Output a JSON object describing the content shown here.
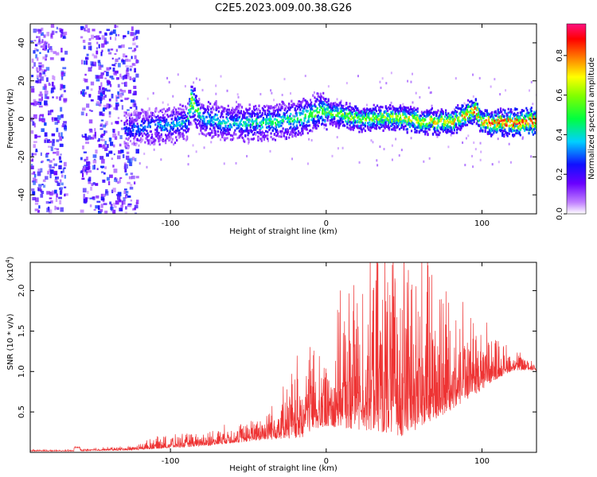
{
  "title": "C2E5.2023.009.00.38.G26",
  "colorbar": {
    "label": "Normalized spectral amplitude",
    "ticks": [
      "0.0",
      "0.2",
      "0.4",
      "0.6",
      "0.8"
    ],
    "tick_values": [
      0.0,
      0.2,
      0.4,
      0.6,
      0.8
    ],
    "range": [
      0.0,
      0.96
    ]
  },
  "chart_data": [
    {
      "type": "heatmap",
      "xlabel": "Height of straight line (km)",
      "ylabel": "Frequency (Hz)",
      "xlim": [
        -190,
        135
      ],
      "ylim": [
        -50,
        50
      ],
      "x_ticks": [
        -100,
        0,
        100
      ],
      "x_tick_labels": [
        "-100",
        "0",
        "100"
      ],
      "y_ticks": [
        -40,
        -20,
        0,
        20,
        40
      ],
      "y_tick_labels": [
        "-40",
        "-20",
        "0",
        "20",
        "40"
      ],
      "ridge": {
        "description": "Doppler ridge near 0 Hz, broad noise for heights below -125 km",
        "x": [
          -190,
          -160,
          -125,
          -110,
          -90,
          -87,
          -80,
          -60,
          -40,
          -20,
          -10,
          0,
          20,
          40,
          60,
          80,
          95,
          100,
          120,
          135
        ],
        "freq": [
          0,
          -6,
          -5,
          -4,
          -2,
          10,
          0,
          -2,
          -2,
          0,
          3,
          4,
          0,
          1,
          -1,
          -2,
          5,
          -2,
          -2,
          -1
        ],
        "amplitude": [
          0.15,
          0.2,
          0.3,
          0.35,
          0.4,
          0.7,
          0.4,
          0.4,
          0.45,
          0.5,
          0.55,
          0.55,
          0.6,
          0.65,
          0.7,
          0.75,
          0.8,
          0.8,
          0.9,
          0.95
        ]
      }
    },
    {
      "type": "line",
      "color": "#ee3333",
      "xlabel": "Height of straight line (km)",
      "ylabel": "SNR (10 * v/v)",
      "y_scale_label": "(x10",
      "y_scale_exp": "4",
      "xlim": [
        -190,
        135
      ],
      "ylim": [
        0,
        2.35
      ],
      "x_ticks": [
        -100,
        0,
        100
      ],
      "x_tick_labels": [
        "-100",
        "0",
        "100"
      ],
      "y_ticks": [
        0.5,
        1.0,
        1.5,
        2.0
      ],
      "y_tick_labels": [
        "0.5",
        "1.0",
        "1.5",
        "2.0"
      ],
      "envelope": {
        "description": "Noisy SNR trace: base level and fluctuation amplitude vs height",
        "x": [
          -190,
          -160,
          -150,
          -125,
          -110,
          -80,
          -50,
          -30,
          -20,
          -15,
          -10,
          0,
          10,
          30,
          50,
          70,
          90,
          110,
          120,
          135
        ],
        "base": [
          0.02,
          0.02,
          0.03,
          0.04,
          0.08,
          0.12,
          0.2,
          0.3,
          0.4,
          0.5,
          0.55,
          0.55,
          0.7,
          0.8,
          0.85,
          0.9,
          0.95,
          1.05,
          1.08,
          1.05
        ],
        "spread": [
          0.01,
          0.01,
          0.02,
          0.03,
          0.08,
          0.1,
          0.15,
          0.3,
          0.5,
          0.7,
          0.65,
          0.5,
          0.9,
          1.2,
          1.45,
          1.1,
          0.7,
          0.3,
          0.15,
          0.08
        ]
      }
    }
  ]
}
